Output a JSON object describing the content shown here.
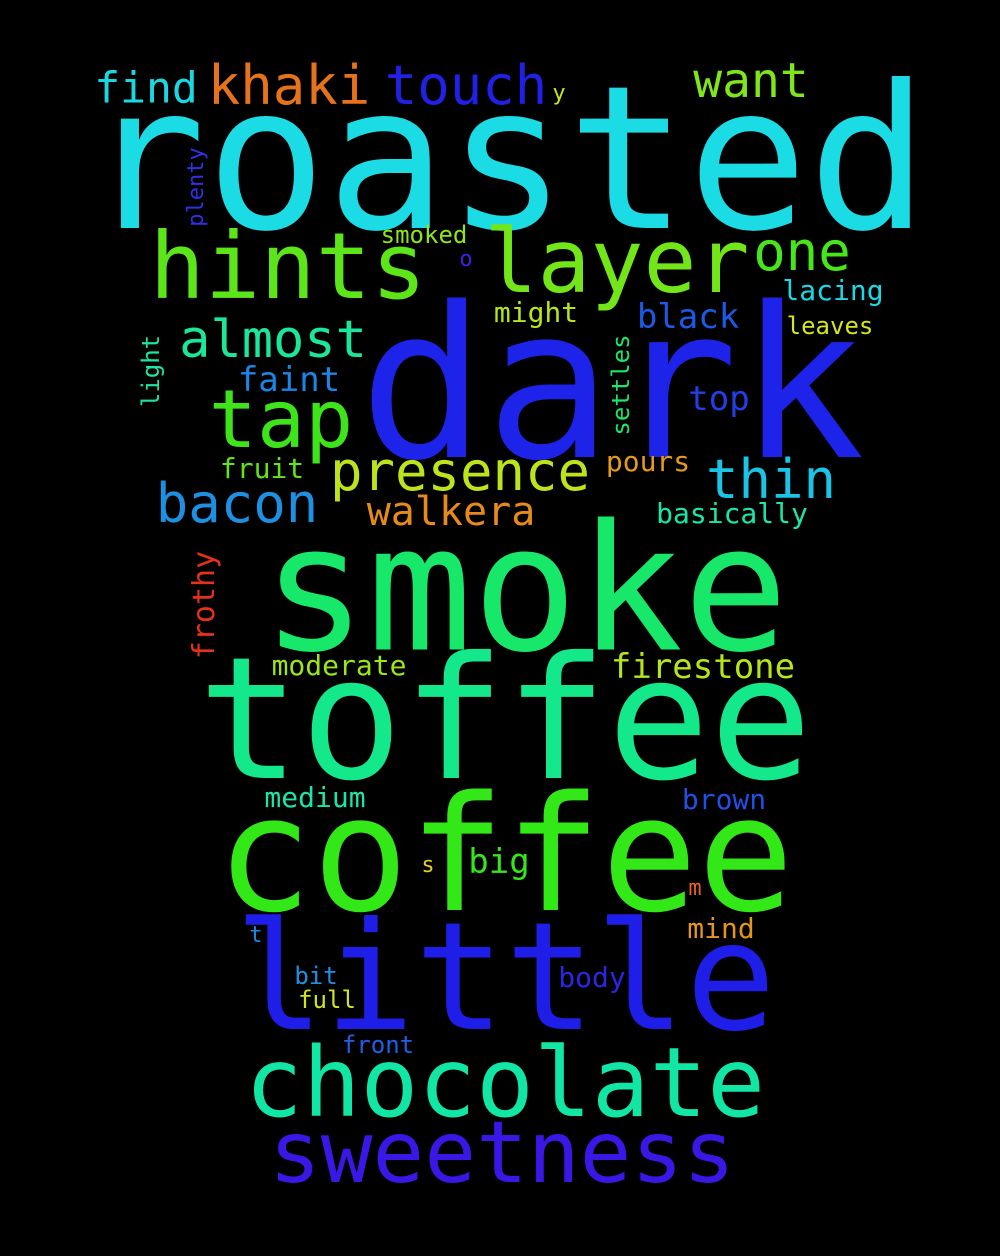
{
  "words": [
    {
      "text": "roasted",
      "color": "#1bdbe4"
    },
    {
      "text": "dark",
      "color": "#1d23e8"
    },
    {
      "text": "smoke",
      "color": "#17e86a"
    },
    {
      "text": "toffee",
      "color": "#13e88a"
    },
    {
      "text": "coffee",
      "color": "#32e817"
    },
    {
      "text": "little",
      "color": "#1f1ee8"
    },
    {
      "text": "chocolate",
      "color": "#12e6a4"
    },
    {
      "text": "sweetness",
      "color": "#3a17e4"
    },
    {
      "text": "hints",
      "color": "#5ce61a"
    },
    {
      "text": "layer",
      "color": "#72e619"
    },
    {
      "text": "tap",
      "color": "#3ee41a"
    },
    {
      "text": "presence",
      "color": "#bde31a"
    },
    {
      "text": "almost",
      "color": "#1ae79a"
    },
    {
      "text": "bacon",
      "color": "#1e90e2"
    },
    {
      "text": "thin",
      "color": "#1ac4e6"
    },
    {
      "text": "one",
      "color": "#46e61a"
    },
    {
      "text": "khaki",
      "color": "#e6721a"
    },
    {
      "text": "touch",
      "color": "#2020e6"
    },
    {
      "text": "find",
      "color": "#1ad8e2"
    },
    {
      "text": "want",
      "color": "#7ee61a"
    },
    {
      "text": "walkera",
      "color": "#e68a1a"
    },
    {
      "text": "firestone",
      "color": "#b6e61a"
    },
    {
      "text": "black",
      "color": "#1a5ae6"
    },
    {
      "text": "faint",
      "color": "#1a86e6"
    },
    {
      "text": "top",
      "color": "#2040e6"
    },
    {
      "text": "moderate",
      "color": "#9be61a"
    },
    {
      "text": "medium",
      "color": "#1ae6ac"
    },
    {
      "text": "brown",
      "color": "#2050e6"
    },
    {
      "text": "big",
      "color": "#34e61a"
    },
    {
      "text": "mind",
      "color": "#e6961a"
    },
    {
      "text": "body",
      "color": "#2a26e6"
    },
    {
      "text": "fruit",
      "color": "#5ee61a"
    },
    {
      "text": "pours",
      "color": "#e69a1a"
    },
    {
      "text": "basically",
      "color": "#1ae6aa"
    },
    {
      "text": "might",
      "color": "#b4e61a"
    },
    {
      "text": "lacing",
      "color": "#1ad8e6"
    },
    {
      "text": "leaves",
      "color": "#d6e61a"
    },
    {
      "text": "smoked",
      "color": "#8ee61a"
    },
    {
      "text": "frothy",
      "color": "#e6301a"
    },
    {
      "text": "settles",
      "color": "#1ae668"
    },
    {
      "text": "light",
      "color": "#1ae6a0"
    },
    {
      "text": "plenty",
      "color": "#3030e6"
    },
    {
      "text": "bit",
      "color": "#2090e6"
    },
    {
      "text": "full",
      "color": "#d0e61a"
    },
    {
      "text": "front",
      "color": "#2060e6"
    },
    {
      "text": "o",
      "color": "#3a22e6"
    },
    {
      "text": "y",
      "color": "#c8e61a"
    },
    {
      "text": "s",
      "color": "#e6d01a"
    },
    {
      "text": "m",
      "color": "#e6621a"
    },
    {
      "text": "t",
      "color": "#1a86e6"
    }
  ]
}
